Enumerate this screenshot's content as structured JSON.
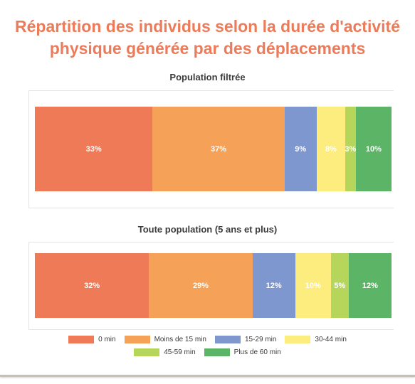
{
  "title_line1": "Répartition des individus selon la durée d'activité",
  "title_line2": "physique générée par des déplacements",
  "chart_data": [
    {
      "type": "bar",
      "orientation": "horizontal",
      "stacked": "percent",
      "title": "Population filtrée",
      "categories": [
        "0 min",
        "Moins de 15 min",
        "15-29 min",
        "30-44 min",
        "45-59 min",
        "Plus de 60 min"
      ],
      "values": [
        33,
        37,
        9,
        8,
        3,
        10
      ],
      "labels": [
        "33%",
        "37%",
        "9%",
        "8%",
        "3%",
        "10%"
      ]
    },
    {
      "type": "bar",
      "orientation": "horizontal",
      "stacked": "percent",
      "title": "Toute population (5 ans et plus)",
      "categories": [
        "0 min",
        "Moins de 15 min",
        "15-29 min",
        "30-44 min",
        "45-59 min",
        "Plus de 60 min"
      ],
      "values": [
        32,
        29,
        12,
        10,
        5,
        12
      ],
      "labels": [
        "32%",
        "29%",
        "12%",
        "10%",
        "5%",
        "12%"
      ]
    }
  ],
  "legend": [
    {
      "label": "0 min",
      "color": "#ef7a57"
    },
    {
      "label": "Moins de 15 min",
      "color": "#f5a157"
    },
    {
      "label": "15-29 min",
      "color": "#7f97cf"
    },
    {
      "label": "30-44 min",
      "color": "#fdec7e"
    },
    {
      "label": "45-59 min",
      "color": "#b5d55b"
    },
    {
      "label": "Plus de 60 min",
      "color": "#5cb567"
    }
  ]
}
